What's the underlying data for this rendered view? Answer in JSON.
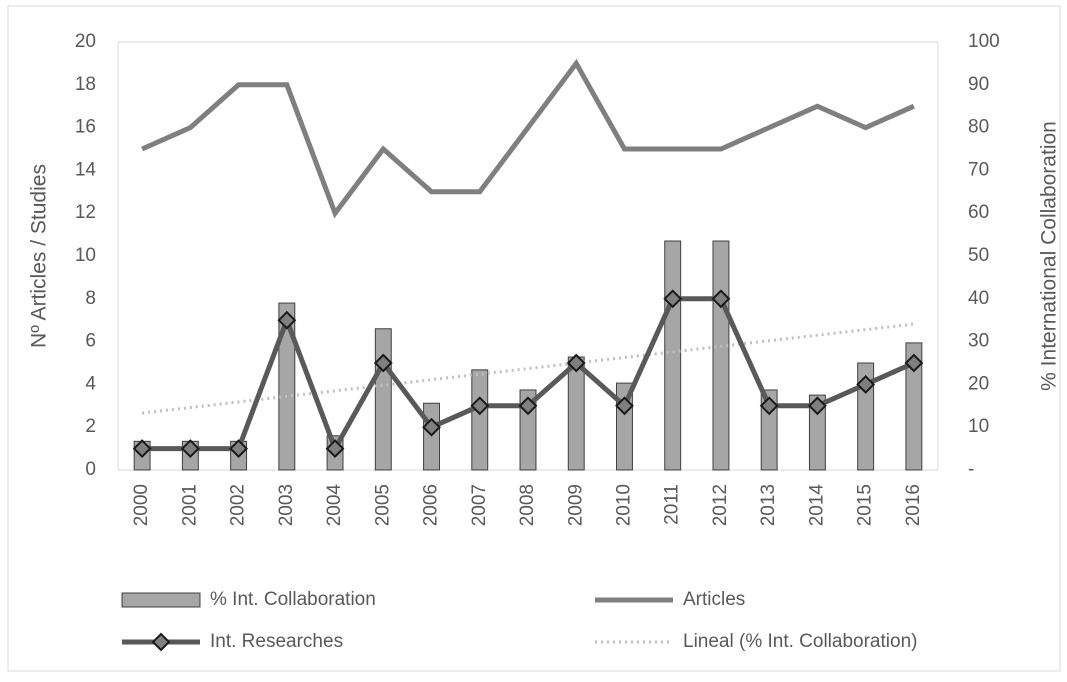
{
  "chart_data": {
    "type": "combo",
    "y_label": "Nº Articles / Studies",
    "y2_label": "% International Collaboration",
    "categories": [
      "2000",
      "2001",
      "2002",
      "2003",
      "2004",
      "2005",
      "2006",
      "2007",
      "2008",
      "2009",
      "2010",
      "2011",
      "2012",
      "2013",
      "2014",
      "2015",
      "2016"
    ],
    "ylim": [
      0,
      20
    ],
    "yticks": [
      0,
      2,
      4,
      6,
      8,
      10,
      12,
      14,
      16,
      18,
      20
    ],
    "y2lim": [
      0,
      100
    ],
    "y2ticks": [
      {
        "value": 0,
        "label": "-"
      },
      10,
      20,
      30,
      40,
      50,
      60,
      70,
      80,
      90,
      100
    ],
    "series": [
      {
        "name": "% Int. Collaboration",
        "type": "bar",
        "axis": "y2",
        "color": "#a6a6a6",
        "values": [
          6.7,
          6.7,
          6.7,
          39,
          8,
          33,
          15.6,
          23.4,
          18.7,
          26.4,
          20.3,
          53.5,
          53.5,
          18.7,
          17.5,
          25,
          29.7
        ]
      },
      {
        "name": "Articles",
        "type": "line",
        "color": "#7f7f7f",
        "values": [
          15,
          16,
          18,
          18,
          12,
          15,
          13,
          13,
          16,
          19,
          15,
          15,
          15,
          16,
          17,
          16,
          17
        ]
      },
      {
        "name": "Int. Researches",
        "type": "line-marker",
        "color": "#595959",
        "values": [
          1,
          1,
          1,
          7,
          1,
          5,
          2,
          3,
          3,
          5,
          3,
          8,
          8,
          3,
          3,
          4,
          5
        ]
      },
      {
        "name": "Lineal (% Int. Collaboration)",
        "type": "trend",
        "axis": "y2",
        "color": "#bfbfbf",
        "values": [
          13.3,
          14.6,
          15.9,
          17.2,
          18.5,
          19.8,
          21.1,
          22.4,
          23.7,
          25.0,
          26.3,
          27.6,
          28.9,
          30.2,
          31.5,
          32.8,
          34.1
        ]
      }
    ]
  }
}
